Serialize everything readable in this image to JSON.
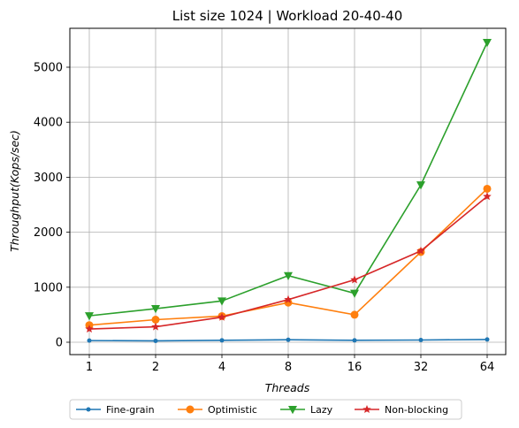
{
  "chart_data": {
    "type": "line",
    "title": "List size 1024 | Workload 20-40-40",
    "xlabel": "Threads",
    "ylabel": "Throughput(Kops/sec)",
    "x": [
      "1",
      "2",
      "4",
      "8",
      "16",
      "32",
      "64"
    ],
    "ylim": [
      -230,
      5700
    ],
    "yticks": [
      0,
      1000,
      2000,
      3000,
      4000,
      5000
    ],
    "grid": true,
    "legend_position": "bottom-center",
    "series": [
      {
        "name": "Fine-grain",
        "color": "#1f77b4",
        "marker": "point",
        "values": [
          30,
          25,
          35,
          45,
          35,
          40,
          50
        ]
      },
      {
        "name": "Optimistic",
        "color": "#ff7f0e",
        "marker": "circle",
        "values": [
          310,
          410,
          475,
          720,
          500,
          1640,
          2790
        ]
      },
      {
        "name": "Lazy",
        "color": "#2ca02c",
        "marker": "triangle-down",
        "values": [
          480,
          610,
          750,
          1210,
          890,
          2860,
          5450
        ]
      },
      {
        "name": "Non-blocking",
        "color": "#d62728",
        "marker": "star",
        "values": [
          240,
          280,
          455,
          775,
          1135,
          1660,
          2650
        ]
      }
    ]
  }
}
